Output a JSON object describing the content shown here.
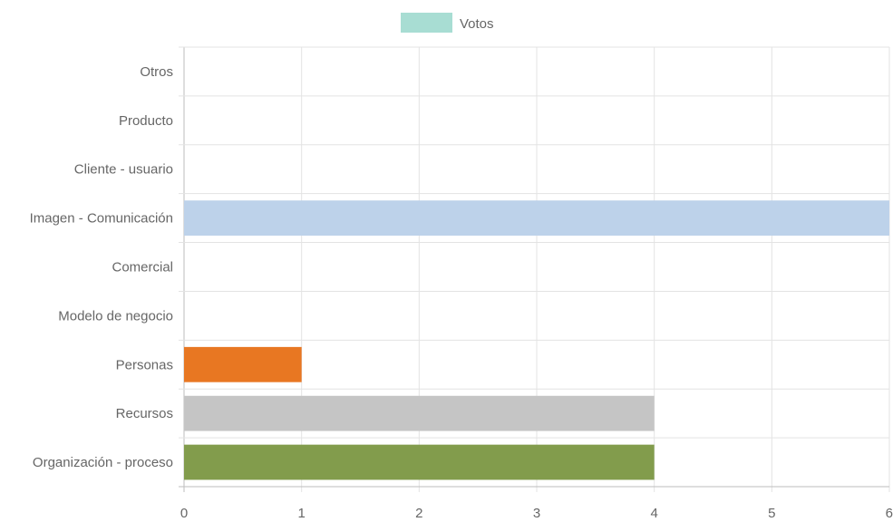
{
  "legend": {
    "label": "Votos",
    "swatch_color": "#a8ddd3"
  },
  "chart_data": {
    "type": "bar",
    "orientation": "horizontal",
    "categories": [
      "Otros",
      "Producto",
      "Cliente - usuario",
      "Imagen - Comunicación",
      "Comercial",
      "Modelo de negocio",
      "Personas",
      "Recursos",
      "Organización - proceso"
    ],
    "series": [
      {
        "name": "Votos",
        "values": [
          0,
          0,
          0,
          6,
          0,
          0,
          1,
          4,
          4
        ],
        "colors": [
          "#cccccc",
          "#cccccc",
          "#cccccc",
          "#bdd2ea",
          "#cccccc",
          "#cccccc",
          "#e87722",
          "#c5c5c5",
          "#829c4c"
        ]
      }
    ],
    "xlim": [
      0,
      6
    ],
    "xticks": [
      "0",
      "1",
      "2",
      "3",
      "4",
      "5",
      "6"
    ],
    "grid": true,
    "legend_position": "top",
    "xlabel": "",
    "ylabel": ""
  }
}
